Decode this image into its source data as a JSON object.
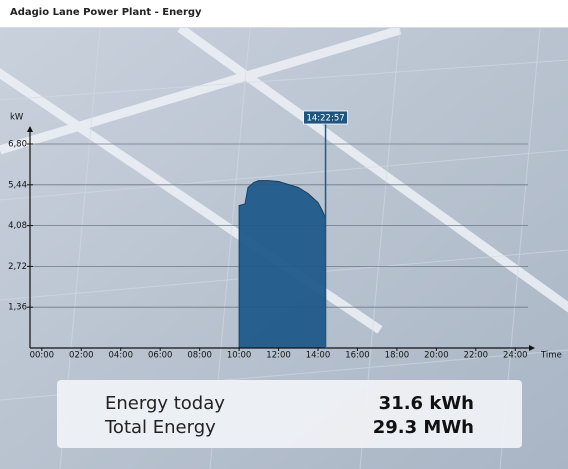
{
  "header": {
    "title": "Adagio Lane Power Plant - Energy"
  },
  "chart_data": {
    "type": "area",
    "y_label": "kW",
    "x_label": "Time",
    "color": "#1f5a8a",
    "x": [
      10.0,
      10.0,
      10.3,
      10.45,
      10.75,
      11.0,
      11.5,
      12.0,
      12.5,
      13.0,
      13.5,
      14.0,
      14.2,
      14.37,
      14.38
    ],
    "values": [
      0,
      4.75,
      4.8,
      5.35,
      5.52,
      5.58,
      5.58,
      5.55,
      5.45,
      5.35,
      5.15,
      4.85,
      4.6,
      4.35,
      0
    ],
    "xlim": [
      -0.6,
      25
    ],
    "ylim": [
      0,
      7.4
    ],
    "xticks": [
      {
        "value": 0,
        "label": "00:00"
      },
      {
        "value": 2,
        "label": "02:00"
      },
      {
        "value": 4,
        "label": "04:00"
      },
      {
        "value": 6,
        "label": "06:00"
      },
      {
        "value": 8,
        "label": "08:00"
      },
      {
        "value": 10,
        "label": "10:00"
      },
      {
        "value": 12,
        "label": "12:00"
      },
      {
        "value": 14,
        "label": "14:00"
      },
      {
        "value": 16,
        "label": "16:00"
      },
      {
        "value": 18,
        "label": "18:00"
      },
      {
        "value": 20,
        "label": "20:00"
      },
      {
        "value": 22,
        "label": "22:00"
      },
      {
        "value": 24,
        "label": "24:00"
      }
    ],
    "yticks": [
      {
        "value": 1.36,
        "label": "1,36"
      },
      {
        "value": 2.72,
        "label": "2,72"
      },
      {
        "value": 4.08,
        "label": "4,08"
      },
      {
        "value": 5.44,
        "label": "5,44"
      },
      {
        "value": 6.8,
        "label": "6,80"
      }
    ],
    "grid": true,
    "cursor": {
      "value": 14.3825,
      "label": "14:22:57"
    }
  },
  "info": {
    "rows": [
      [
        "Energy today",
        "31.6 kWh"
      ],
      [
        "Total Energy",
        "29.3 MWh"
      ]
    ]
  }
}
